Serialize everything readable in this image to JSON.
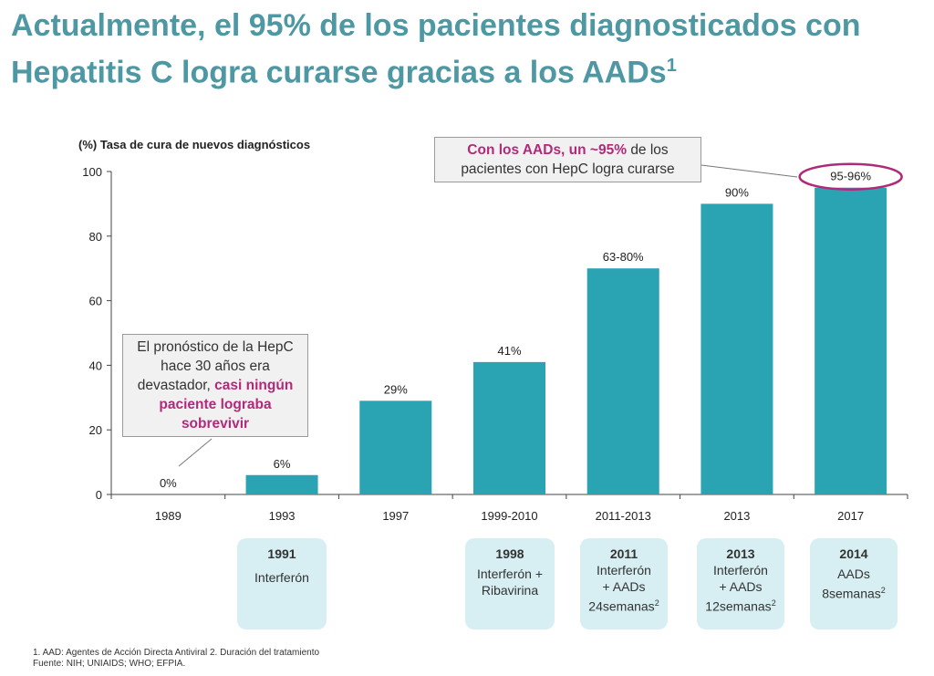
{
  "header": {
    "title": "Actualmente, el 95% de los pacientes diagnosticados con Hepatitis C logra curarse gracias a los AADs",
    "title_sup": "1"
  },
  "chart_data": {
    "type": "bar",
    "title": "(%) Tasa de cura de nuevos diagnósticos",
    "categories": [
      "1989",
      "1993",
      "1997",
      "1999-2010",
      "2011-2013",
      "2013",
      "2017"
    ],
    "values": [
      0,
      6,
      29,
      41,
      70,
      90,
      95
    ],
    "value_labels": [
      "0%",
      "6%",
      "29%",
      "41%",
      "63-80%",
      "90%",
      "95-96%"
    ],
    "ylim": [
      0,
      100
    ],
    "yticks": [
      0,
      20,
      40,
      60,
      80,
      100
    ],
    "bar_color": "#2aa3b3",
    "grid": false
  },
  "callouts": {
    "left": {
      "plain": "El pronóstico de la HepC hace 30 años era devastador,",
      "highlight": "casi ningún paciente lograba sobrevivir"
    },
    "top": {
      "highlight": "Con los AADs, un ~95%",
      "plain": "de los pacientes con HepC logra curarse"
    }
  },
  "treatments": [
    {
      "year": "1991",
      "line1": "Interferón",
      "line2": "",
      "line3": "",
      "sup": ""
    },
    {
      "year": "1998",
      "line1": "Interferón +",
      "line2": "Ribavirina",
      "line3": "",
      "sup": ""
    },
    {
      "year": "2011",
      "line1": "Interferón",
      "line2": "+ AADs",
      "line3": "24semanas",
      "sup": "2"
    },
    {
      "year": "2013",
      "line1": "Interferón",
      "line2": "+ AADs",
      "line3": "12semanas",
      "sup": "2"
    },
    {
      "year": "2014",
      "line1": "AADs",
      "line2": "8semanas",
      "line3": "",
      "sup": "2"
    }
  ],
  "footnotes": {
    "line1": "1. AAD: Agentes de Acción Directa Antiviral 2. Duración del tratamiento",
    "line2": "Fuente: NIH; UNIAIDS; WHO; EFPIA."
  },
  "colors": {
    "title": "#4e98a4",
    "highlight": "#b12a7a",
    "bar": "#2aa3b3",
    "treatment_box": "#d7eff3"
  }
}
